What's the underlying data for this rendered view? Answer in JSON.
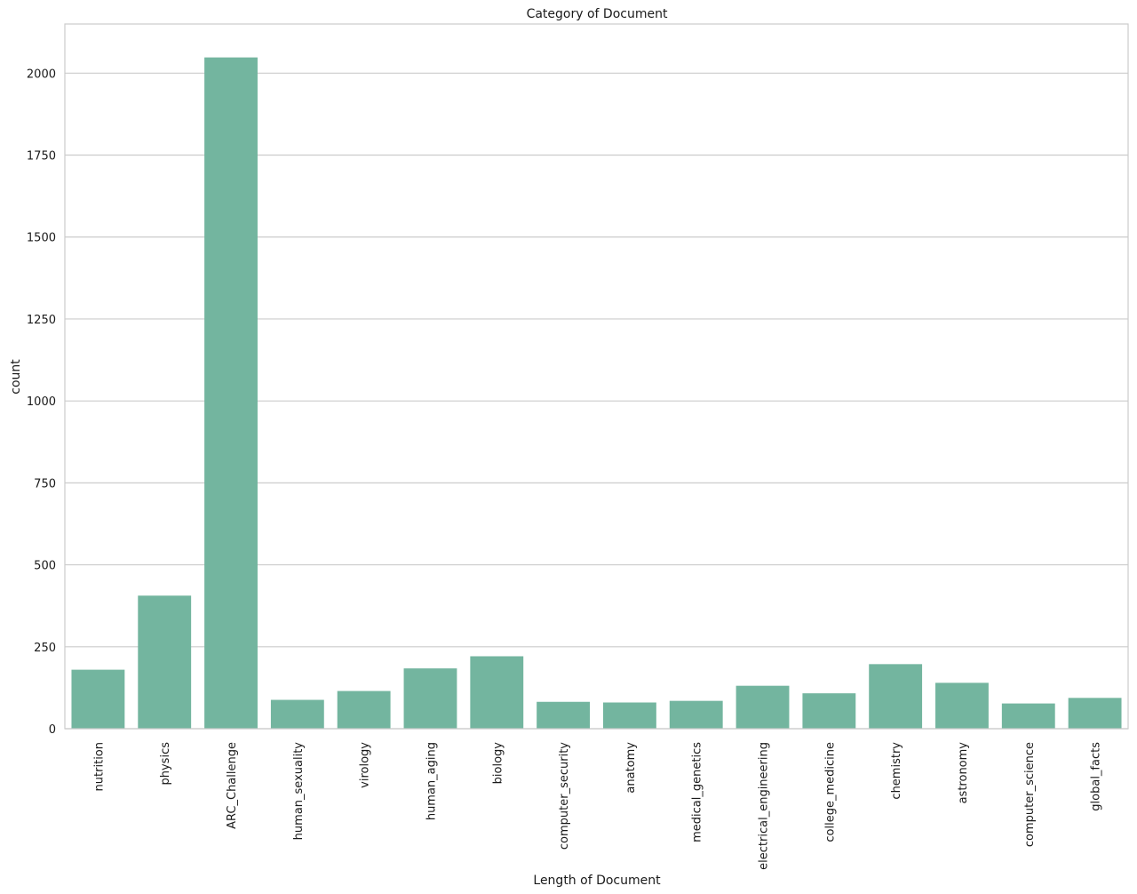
{
  "chart_data": {
    "type": "bar",
    "title": "Category of Document",
    "xlabel": "Length of Document",
    "ylabel": "count",
    "ylim": [
      0,
      2150
    ],
    "yticks": [
      0,
      250,
      500,
      750,
      1000,
      1250,
      1500,
      1750,
      2000
    ],
    "grid": "horizontal",
    "bar_color": "#73b59f",
    "categories": [
      "nutrition",
      "physics",
      "ARC_Challenge",
      "human_sexuality",
      "virology",
      "human_aging",
      "biology",
      "computer_security",
      "anatomy",
      "medical_genetics",
      "electrical_engineering",
      "college_medicine",
      "chemistry",
      "astronomy",
      "computer_science",
      "global_facts"
    ],
    "values": [
      180,
      406,
      2048,
      88,
      115,
      184,
      221,
      82,
      80,
      85,
      131,
      108,
      197,
      140,
      77,
      94
    ]
  }
}
